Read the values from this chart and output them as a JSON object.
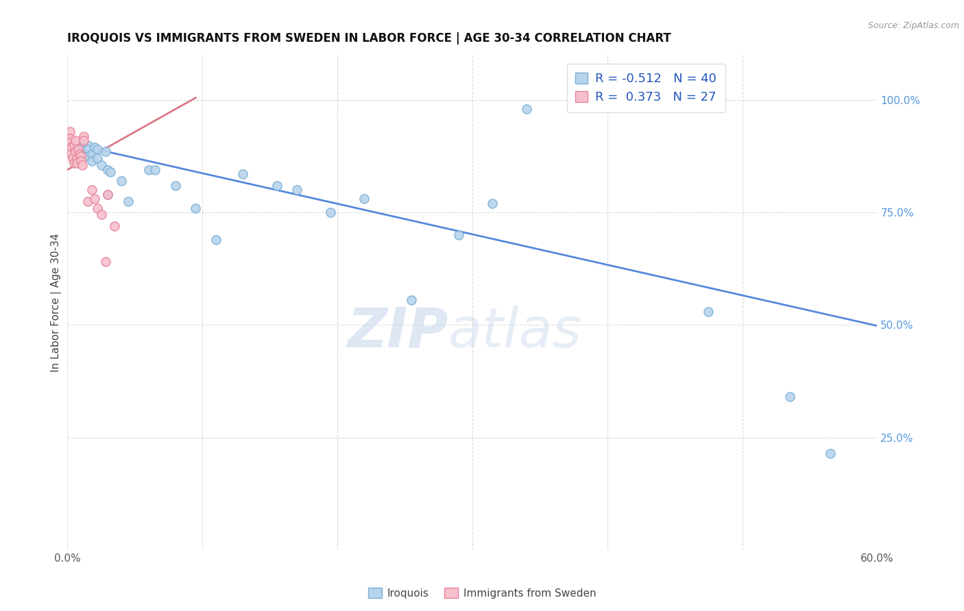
{
  "title": "IROQUOIS VS IMMIGRANTS FROM SWEDEN IN LABOR FORCE | AGE 30-34 CORRELATION CHART",
  "source": "Source: ZipAtlas.com",
  "ylabel": "In Labor Force | Age 30-34",
  "xmin": 0.0,
  "xmax": 0.6,
  "ymin": 0.0,
  "ymax": 1.1,
  "x_ticks": [
    0.0,
    0.1,
    0.2,
    0.3,
    0.4,
    0.5,
    0.6
  ],
  "x_tick_labels": [
    "0.0%",
    "",
    "",
    "",
    "",
    "",
    "60.0%"
  ],
  "y_ticks_right": [
    0.25,
    0.5,
    0.75,
    1.0
  ],
  "y_tick_labels_right": [
    "25.0%",
    "50.0%",
    "75.0%",
    "100.0%"
  ],
  "grid_color": "#cccccc",
  "background_color": "#ffffff",
  "iroquois_color": "#b8d4ed",
  "iroquois_edge_color": "#7aafd4",
  "sweden_color": "#f5c0cc",
  "sweden_edge_color": "#e88099",
  "blue_line_color": "#5588dd",
  "red_line_color": "#dd7788",
  "legend_r_blue": "-0.512",
  "legend_n_blue": "40",
  "legend_r_pink": "0.373",
  "legend_n_pink": "27",
  "iroquois_x": [
    0.005,
    0.005,
    0.008,
    0.01,
    0.01,
    0.012,
    0.012,
    0.015,
    0.015,
    0.015,
    0.018,
    0.018,
    0.02,
    0.022,
    0.022,
    0.025,
    0.028,
    0.03,
    0.03,
    0.032,
    0.04,
    0.045,
    0.06,
    0.065,
    0.08,
    0.095,
    0.11,
    0.13,
    0.155,
    0.17,
    0.195,
    0.22,
    0.255,
    0.29,
    0.315,
    0.34,
    0.425,
    0.475,
    0.535,
    0.565
  ],
  "iroquois_y": [
    0.875,
    0.865,
    0.88,
    0.895,
    0.87,
    0.895,
    0.88,
    0.9,
    0.89,
    0.875,
    0.88,
    0.865,
    0.895,
    0.89,
    0.87,
    0.855,
    0.885,
    0.845,
    0.79,
    0.84,
    0.82,
    0.775,
    0.845,
    0.845,
    0.81,
    0.76,
    0.69,
    0.835,
    0.81,
    0.8,
    0.75,
    0.78,
    0.555,
    0.7,
    0.77,
    0.98,
    1.0,
    0.53,
    0.34,
    0.215
  ],
  "sweden_x": [
    0.002,
    0.002,
    0.002,
    0.003,
    0.003,
    0.004,
    0.005,
    0.005,
    0.006,
    0.006,
    0.007,
    0.007,
    0.008,
    0.009,
    0.01,
    0.01,
    0.011,
    0.012,
    0.012,
    0.015,
    0.018,
    0.02,
    0.022,
    0.025,
    0.028,
    0.03,
    0.035
  ],
  "sweden_y": [
    0.93,
    0.915,
    0.905,
    0.895,
    0.88,
    0.87,
    0.86,
    0.9,
    0.91,
    0.885,
    0.87,
    0.86,
    0.89,
    0.88,
    0.875,
    0.865,
    0.855,
    0.92,
    0.91,
    0.775,
    0.8,
    0.78,
    0.76,
    0.745,
    0.64,
    0.79,
    0.72
  ],
  "blue_line_x": [
    0.0,
    0.6
  ],
  "blue_line_y": [
    0.905,
    0.498
  ],
  "red_line_x": [
    0.0,
    0.095
  ],
  "red_line_y": [
    0.845,
    1.005
  ],
  "watermark_zip": "ZIP",
  "watermark_atlas": "atlas",
  "marker_size": 90
}
